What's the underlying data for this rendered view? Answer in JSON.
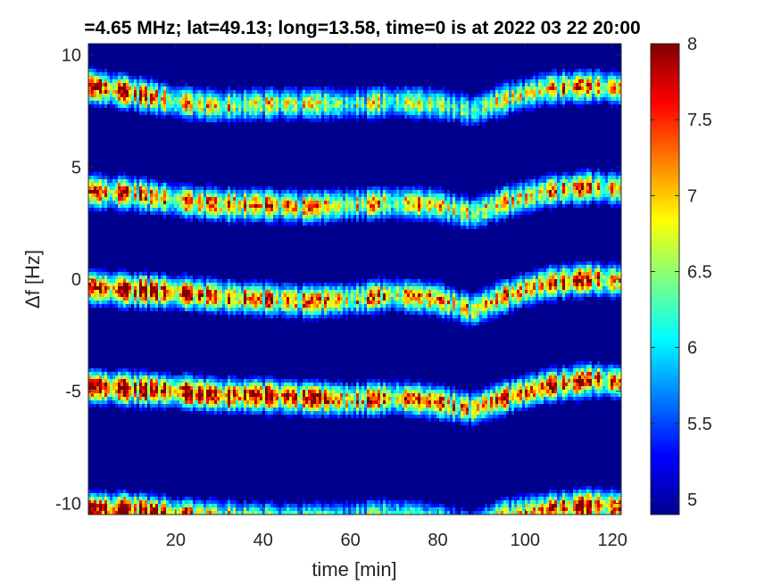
{
  "chart_data": {
    "type": "heatmap",
    "title": "=4.65 MHz;  lat=49.13; long=13.58, time=0 is at 2022 03 22 20:00",
    "xlabel": "time [min]",
    "ylabel": "Δf [Hz]",
    "xlim": [
      0,
      122
    ],
    "ylim": [
      -10.5,
      10.5
    ],
    "xticks": [
      20,
      40,
      60,
      80,
      100,
      120
    ],
    "xtick_labels": [
      "20",
      "40",
      "60",
      "80",
      "100",
      "120"
    ],
    "yticks": [
      -10,
      -5,
      0,
      5,
      10
    ],
    "ytick_labels": [
      "-10",
      "-5",
      "0",
      "5",
      "10"
    ],
    "colorbar": {
      "colormap": "jet",
      "clim": [
        4.9,
        8.0
      ],
      "ticks": [
        5,
        5.5,
        6,
        6.5,
        7,
        7.5,
        8
      ],
      "tick_labels": [
        "5",
        "5.5",
        "6",
        "6.5",
        "7",
        "7.5",
        "8"
      ]
    },
    "background_color": "#00008f",
    "series": [
      {
        "time": [
          0,
          10,
          20,
          30,
          40,
          50,
          60,
          70,
          80,
          88,
          95,
          105,
          115,
          122
        ],
        "center_hz": [
          8.6,
          8.3,
          7.9,
          7.7,
          7.8,
          7.8,
          7.8,
          7.9,
          7.8,
          7.5,
          8.0,
          8.5,
          8.6,
          8.5
        ],
        "peak_intensity": [
          7.6,
          7.5,
          6.9,
          6.8,
          6.6,
          6.5,
          6.4,
          6.5,
          6.4,
          6.3,
          6.6,
          6.8,
          7.0,
          6.9
        ]
      },
      {
        "time": [
          0,
          10,
          20,
          30,
          40,
          50,
          60,
          70,
          80,
          88,
          95,
          105,
          115,
          122
        ],
        "center_hz": [
          3.9,
          3.8,
          3.5,
          3.3,
          3.3,
          3.2,
          3.3,
          3.4,
          3.3,
          2.9,
          3.4,
          3.9,
          4.1,
          4.0
        ],
        "peak_intensity": [
          7.3,
          7.2,
          7.0,
          7.3,
          7.1,
          6.9,
          6.8,
          6.8,
          6.7,
          6.6,
          6.8,
          6.9,
          7.0,
          6.9
        ]
      },
      {
        "time": [
          0,
          10,
          20,
          30,
          40,
          50,
          60,
          70,
          80,
          88,
          95,
          105,
          115,
          122
        ],
        "center_hz": [
          -0.4,
          -0.5,
          -0.6,
          -0.8,
          -0.9,
          -1.0,
          -0.9,
          -0.7,
          -0.9,
          -1.4,
          -0.8,
          -0.2,
          0.0,
          -0.1
        ],
        "peak_intensity": [
          7.4,
          7.8,
          7.6,
          7.3,
          7.1,
          7.0,
          7.0,
          7.0,
          7.0,
          6.9,
          7.0,
          7.2,
          7.3,
          7.1
        ]
      },
      {
        "time": [
          0,
          10,
          20,
          30,
          40,
          50,
          60,
          70,
          80,
          88,
          95,
          105,
          115,
          122
        ],
        "center_hz": [
          -4.8,
          -4.9,
          -5.0,
          -5.2,
          -5.2,
          -5.3,
          -5.4,
          -5.3,
          -5.5,
          -5.8,
          -5.3,
          -4.8,
          -4.5,
          -4.6
        ],
        "peak_intensity": [
          7.7,
          7.8,
          7.7,
          7.8,
          7.6,
          7.4,
          7.3,
          7.2,
          7.2,
          7.0,
          7.2,
          7.4,
          7.3,
          7.2
        ]
      },
      {
        "time": [
          0,
          10,
          20,
          30,
          40,
          50,
          60,
          70,
          80,
          88,
          95,
          105,
          115,
          122
        ],
        "center_hz": [
          -10.3,
          -10.3,
          -10.5,
          -10.6,
          -10.7,
          -10.7,
          -10.6,
          -10.5,
          -10.7,
          -11.0,
          -10.5,
          -10.3,
          -10.1,
          -10.2
        ],
        "peak_intensity": [
          7.8,
          7.9,
          7.4,
          6.8,
          6.5,
          6.3,
          6.2,
          6.4,
          6.2,
          6.0,
          6.6,
          7.3,
          7.5,
          7.4
        ]
      }
    ]
  }
}
